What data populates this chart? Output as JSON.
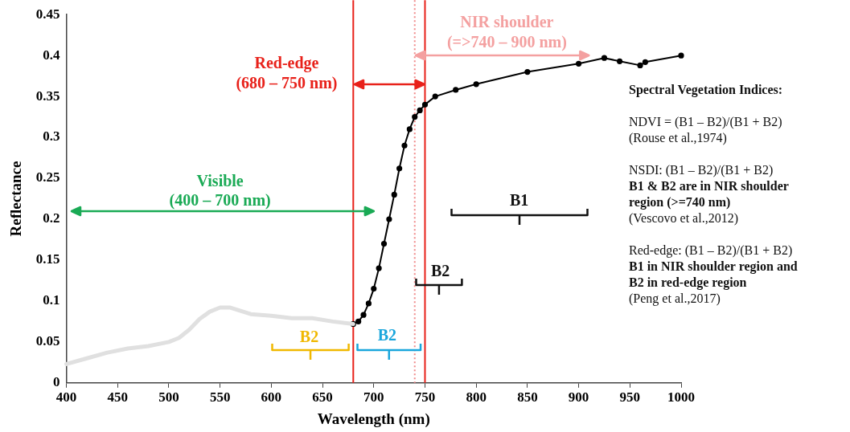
{
  "chart_data": {
    "type": "line",
    "xlabel": "Wavelength (nm)",
    "ylabel": "Reflectance",
    "xlim": [
      400,
      1000
    ],
    "xticks": [
      400,
      450,
      500,
      550,
      600,
      650,
      700,
      750,
      800,
      850,
      900,
      950,
      1000
    ],
    "ylim": [
      0,
      0.45
    ],
    "yticks": [
      0,
      0.05,
      0.1,
      0.15,
      0.2,
      0.25,
      0.3,
      0.35,
      0.4,
      0.45
    ],
    "grid": false,
    "legend": false,
    "series": [
      {
        "color": "#e0e0e0",
        "marker": "none",
        "x": [
          400,
          420,
          440,
          460,
          480,
          500,
          510,
          520,
          530,
          540,
          550,
          560,
          570,
          580,
          600,
          620,
          640,
          660,
          680
        ],
        "values": [
          0.023,
          0.03,
          0.037,
          0.042,
          0.045,
          0.05,
          0.055,
          0.065,
          0.078,
          0.087,
          0.092,
          0.092,
          0.088,
          0.084,
          0.082,
          0.079,
          0.079,
          0.075,
          0.072
        ]
      },
      {
        "color": "#000000",
        "marker": "circle",
        "x": [
          680,
          685,
          690,
          695,
          700,
          705,
          710,
          715,
          720,
          725,
          730,
          735,
          740,
          745,
          750,
          760,
          780,
          800,
          850,
          900,
          925,
          940,
          960,
          965,
          1000
        ],
        "values": [
          0.072,
          0.075,
          0.083,
          0.097,
          0.115,
          0.14,
          0.17,
          0.2,
          0.23,
          0.262,
          0.29,
          0.31,
          0.325,
          0.333,
          0.34,
          0.35,
          0.358,
          0.365,
          0.38,
          0.39,
          0.397,
          0.393,
          0.388,
          0.392,
          0.4
        ]
      }
    ],
    "ref_lines": [
      {
        "axis": "x",
        "value": 680,
        "color": "#e8211a",
        "line_style": "solid"
      },
      {
        "axis": "x",
        "value": 750,
        "color": "#e8211a",
        "line_style": "solid"
      },
      {
        "axis": "x",
        "value": 740,
        "color": "#f08a8a",
        "line_style": "dotted"
      }
    ],
    "annotations": [
      "Visible",
      "(400 – 700 nm)",
      "Red-edge",
      "(680 – 750 nm)",
      "NIR shoulder",
      "(=>740 – 900 nm)",
      "B2",
      "B2",
      "B2",
      "B1",
      "Spectral Vegetation Indices:",
      "NDVI = (B1 – B2)/(B1 + B2)",
      "(Rouse et al.,1974)",
      "NSDI: (B1 – B2)/(B1 + B2)",
      "B1 & B2 are in NIR shoulder",
      "region (>=740 nm)",
      "(Vescovo et al.,2012)",
      "Red-edge: (B1 – B2)/(B1 + B2)",
      "B1 in NIR shoulder region and",
      "B2 in red-edge region",
      "(Peng et al.,2017)"
    ]
  }
}
